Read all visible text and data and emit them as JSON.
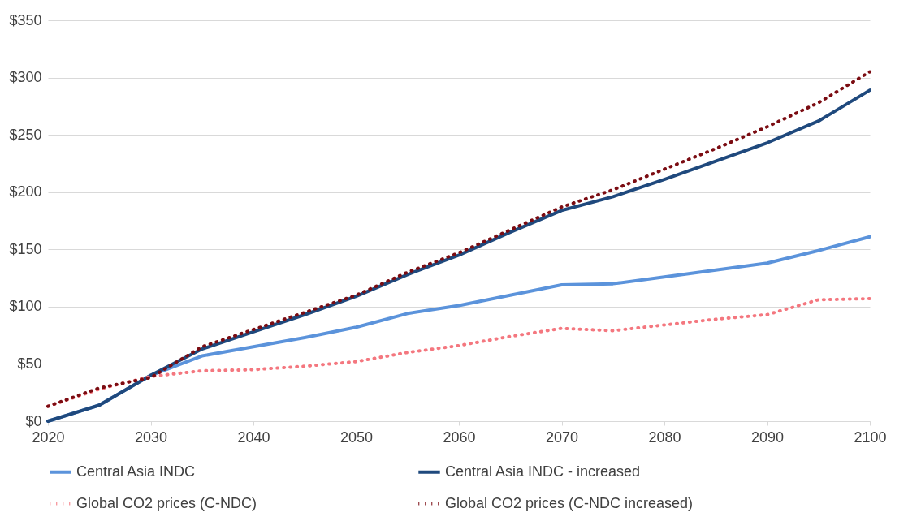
{
  "chart_data": {
    "type": "line",
    "x": [
      2020,
      2025,
      2030,
      2035,
      2040,
      2045,
      2050,
      2055,
      2060,
      2065,
      2070,
      2075,
      2080,
      2085,
      2090,
      2095,
      2100
    ],
    "series": [
      {
        "name": "Central Asia INDC",
        "color": "#5b93db",
        "line_style": "solid",
        "values": [
          0,
          14,
          40,
          57,
          65,
          73,
          82,
          94,
          101,
          110,
          119,
          120,
          126,
          132,
          138,
          149,
          161
        ]
      },
      {
        "name": "Central Asia INDC - increased",
        "color": "#1f497d",
        "line_style": "solid",
        "values": [
          0,
          14,
          40,
          63,
          78,
          93,
          109,
          128,
          145,
          165,
          184,
          196,
          211,
          227,
          243,
          262,
          289
        ]
      },
      {
        "name": "Global CO2 prices (C-NDC)",
        "color": "#f4777f",
        "line_style": "dotted",
        "values": [
          13,
          28,
          39,
          44,
          45,
          48,
          52,
          60,
          66,
          74,
          81,
          79,
          84,
          89,
          93,
          106,
          107
        ]
      },
      {
        "name": "Global CO2 prices (C-NDC increased)",
        "color": "#7b0c12",
        "line_style": "dotted",
        "values": [
          13,
          29,
          38,
          65,
          80,
          95,
          110,
          130,
          147,
          167,
          187,
          202,
          220,
          238,
          257,
          278,
          305
        ]
      }
    ],
    "xlim": [
      2020,
      2100
    ],
    "xticks": [
      2020,
      2030,
      2040,
      2050,
      2060,
      2070,
      2080,
      2090,
      2100
    ],
    "ylim": [
      0,
      350
    ],
    "yticks": [
      {
        "value": 0,
        "label": "$0"
      },
      {
        "value": 50,
        "label": "$50"
      },
      {
        "value": 100,
        "label": "$100"
      },
      {
        "value": 150,
        "label": "$150"
      },
      {
        "value": 200,
        "label": "$200"
      },
      {
        "value": 250,
        "label": "$250"
      },
      {
        "value": 300,
        "label": "$300"
      },
      {
        "value": 350,
        "label": "$350"
      }
    ],
    "grid": "y",
    "legend": "bottom",
    "marker": "none"
  }
}
